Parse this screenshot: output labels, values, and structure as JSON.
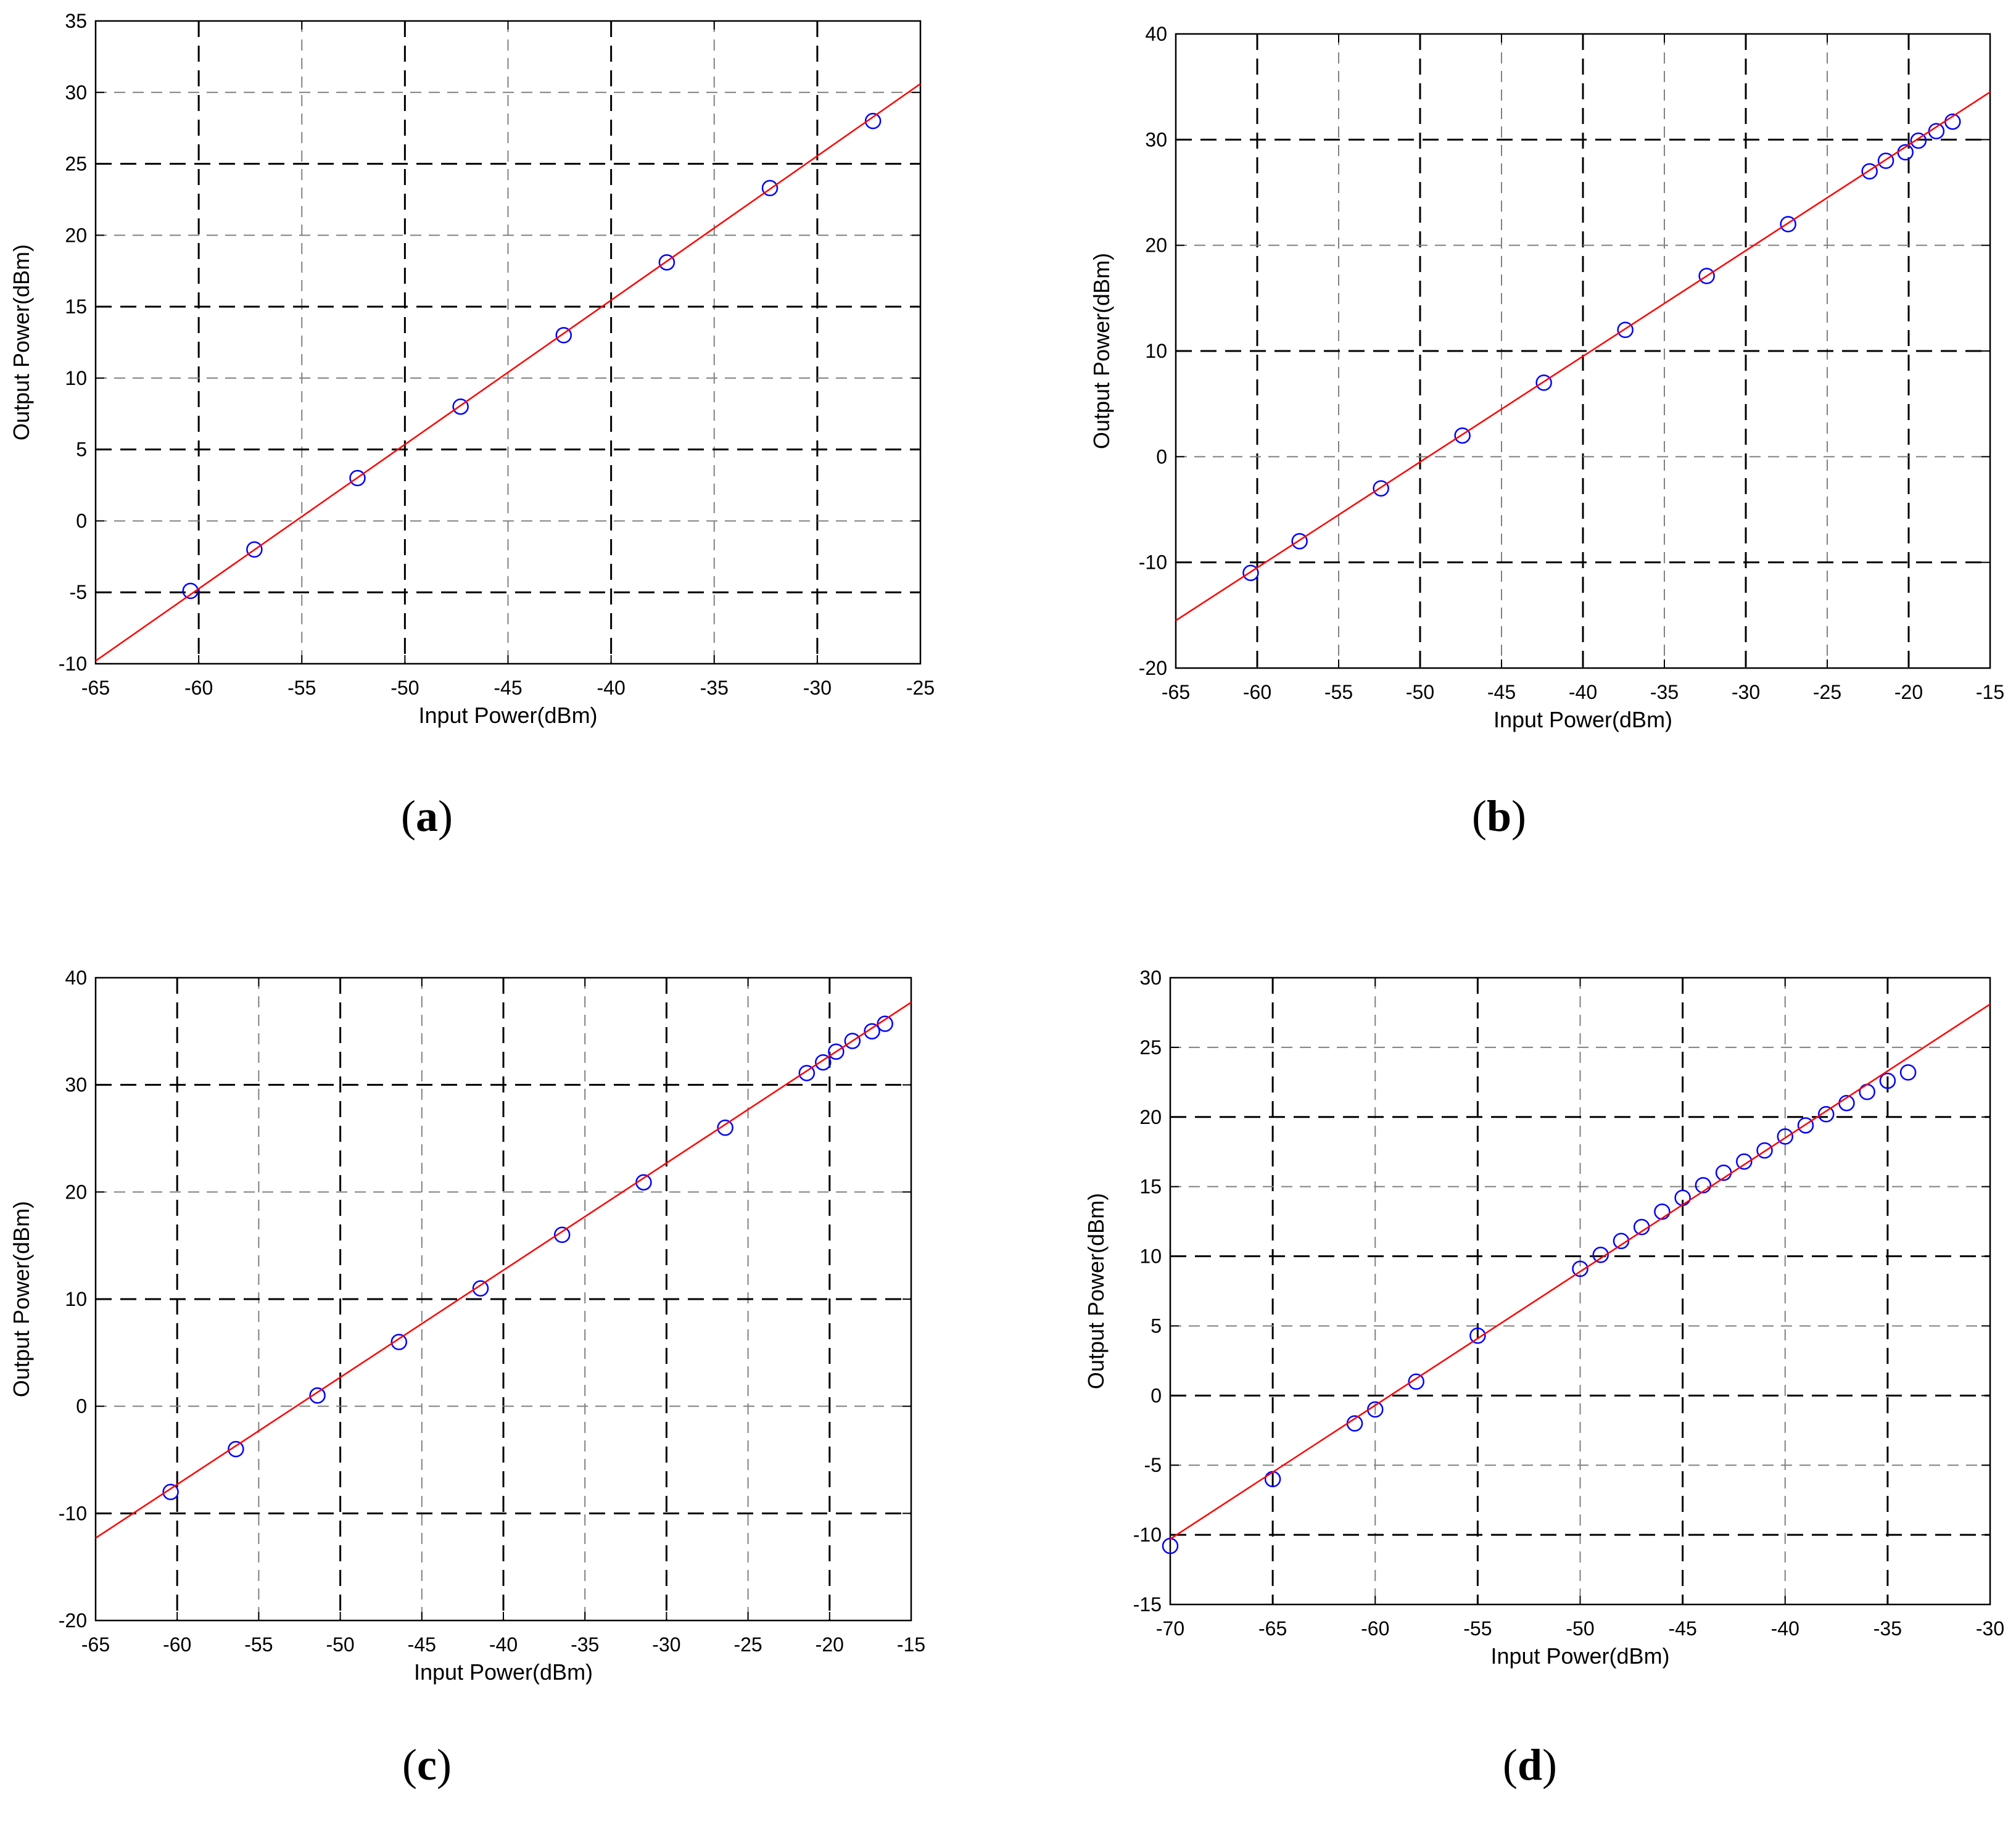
{
  "panels": [
    {
      "label_open": "(",
      "label_letter": "a",
      "label_close": ")"
    },
    {
      "label_open": "(",
      "label_letter": "b",
      "label_close": ")"
    },
    {
      "label_open": "(",
      "label_letter": "c",
      "label_close": ")"
    },
    {
      "label_open": "(",
      "label_letter": "d",
      "label_close": ")"
    }
  ],
  "colors": {
    "fit_line": "#ff0000",
    "markers": "#0000ff",
    "axes": "#000000",
    "major_grid": "#000000",
    "minor_grid": "#808080"
  },
  "chart_data": [
    {
      "type": "scatter",
      "panel": "a",
      "xlabel": "Input Power(dBm)",
      "ylabel": "Output Power(dBm)",
      "xlim": [
        -65,
        -25
      ],
      "ylim": [
        -10,
        35
      ],
      "xticks": [
        -65,
        -60,
        -55,
        -50,
        -45,
        -40,
        -35,
        -30,
        -25
      ],
      "yticks": [
        -10,
        -5,
        0,
        5,
        10,
        15,
        20,
        25,
        30,
        35
      ],
      "grid": true,
      "series": [
        {
          "kind": "markers",
          "marker": "circle",
          "x": [
            -60.4,
            -57.3,
            -52.3,
            -47.3,
            -42.3,
            -37.3,
            -32.3,
            -27.3
          ],
          "y": [
            -4.9,
            -2.0,
            3.0,
            8.0,
            13.0,
            18.1,
            23.3,
            28.0
          ]
        },
        {
          "kind": "fit-line",
          "x": [
            -65,
            -25
          ],
          "y": [
            -9.8,
            30.6
          ]
        }
      ]
    },
    {
      "type": "scatter",
      "panel": "b",
      "xlabel": "Input Power(dBm)",
      "ylabel": "Output Power(dBm)",
      "xlim": [
        -65,
        -15
      ],
      "ylim": [
        -20,
        40
      ],
      "xticks": [
        -65,
        -60,
        -55,
        -50,
        -45,
        -40,
        -35,
        -30,
        -25,
        -20,
        -15
      ],
      "yticks": [
        -20,
        -10,
        0,
        10,
        20,
        30,
        40
      ],
      "grid": true,
      "series": [
        {
          "kind": "markers",
          "marker": "circle",
          "x": [
            -60.4,
            -57.4,
            -52.4,
            -47.4,
            -42.4,
            -37.4,
            -32.4,
            -27.4,
            -22.4,
            -21.4,
            -20.2,
            -19.4,
            -18.3,
            -17.3
          ],
          "y": [
            -11.0,
            -8.0,
            -3.0,
            2.0,
            7.0,
            12.0,
            17.1,
            22.0,
            27.0,
            28.0,
            28.8,
            29.9,
            30.8,
            31.7
          ]
        },
        {
          "kind": "fit-line",
          "x": [
            -65,
            -15
          ],
          "y": [
            -15.5,
            34.5
          ]
        }
      ]
    },
    {
      "type": "scatter",
      "panel": "c",
      "xlabel": "Input Power(dBm)",
      "ylabel": "Output Power(dBm)",
      "xlim": [
        -65,
        -15
      ],
      "ylim": [
        -20,
        40
      ],
      "xticks": [
        -65,
        -60,
        -55,
        -50,
        -45,
        -40,
        -35,
        -30,
        -25,
        -20,
        -15
      ],
      "yticks": [
        -20,
        -10,
        0,
        10,
        20,
        30,
        40
      ],
      "grid": true,
      "series": [
        {
          "kind": "markers",
          "marker": "circle",
          "x": [
            -60.4,
            -56.4,
            -51.4,
            -46.4,
            -41.4,
            -36.4,
            -31.4,
            -26.4,
            -21.4,
            -20.4,
            -19.6,
            -18.6,
            -17.4,
            -16.6
          ],
          "y": [
            -8.0,
            -4.0,
            1.0,
            6.0,
            11.0,
            16.0,
            20.9,
            26.0,
            31.1,
            32.1,
            33.1,
            34.1,
            35.0,
            35.7
          ]
        },
        {
          "kind": "fit-line",
          "x": [
            -65,
            -15
          ],
          "y": [
            -12.3,
            37.7
          ]
        }
      ]
    },
    {
      "type": "scatter",
      "panel": "d",
      "xlabel": "Input Power(dBm)",
      "ylabel": "Output Power(dBm)",
      "xlim": [
        -70,
        -30
      ],
      "ylim": [
        -15,
        30
      ],
      "xticks": [
        -70,
        -65,
        -60,
        -55,
        -50,
        -45,
        -40,
        -35,
        -30
      ],
      "yticks": [
        -15,
        -10,
        -5,
        0,
        5,
        10,
        15,
        20,
        25,
        30
      ],
      "grid": true,
      "series": [
        {
          "kind": "markers",
          "marker": "circle",
          "x": [
            -70,
            -65,
            -61,
            -60,
            -58,
            -55,
            -50,
            -49,
            -48,
            -47,
            -46,
            -45,
            -44,
            -43,
            -42,
            -41,
            -40,
            -39,
            -38,
            -37,
            -36,
            -35,
            -34
          ],
          "y": [
            -10.8,
            -6.0,
            -2.0,
            -1.0,
            1.0,
            4.3,
            9.1,
            10.1,
            11.1,
            12.1,
            13.2,
            14.2,
            15.1,
            16.0,
            16.8,
            17.6,
            18.6,
            19.4,
            20.2,
            21.0,
            21.8,
            22.6,
            23.2
          ]
        },
        {
          "kind": "fit-line",
          "x": [
            -70,
            -30
          ],
          "y": [
            -10.3,
            28.1
          ]
        }
      ]
    }
  ]
}
